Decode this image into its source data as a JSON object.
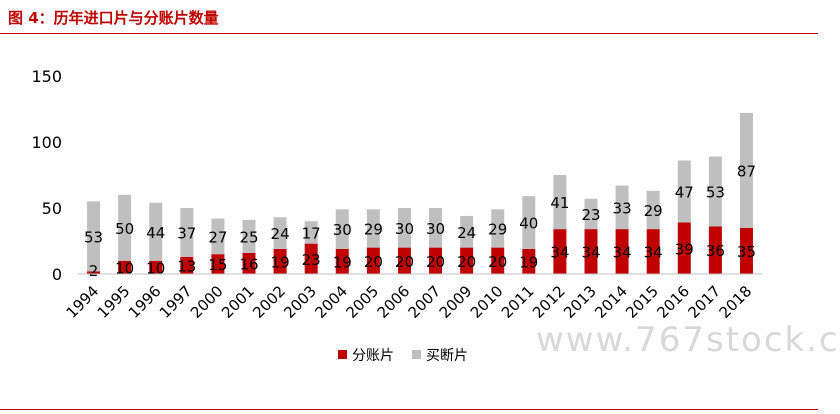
{
  "figure_title": "图 4：历年进口片与分账片数量",
  "watermark": "www.767stock.c",
  "colors": {
    "revenue_share": "#c00000",
    "buyout": "#bfbfbf",
    "title": "#c00000"
  },
  "chart_data": {
    "type": "bar",
    "stacked": true,
    "title": "",
    "xlabel": "",
    "ylabel": "",
    "ylim": [
      0,
      150
    ],
    "yticks": [
      0,
      50,
      100,
      150
    ],
    "grid": false,
    "legend_position": "bottom",
    "categories": [
      "1994",
      "1995",
      "1996",
      "1997",
      "2000",
      "2001",
      "2002",
      "2003",
      "2004",
      "2005",
      "2006",
      "2007",
      "2009",
      "2010",
      "2011",
      "2012",
      "2013",
      "2014",
      "2015",
      "2016",
      "2017",
      "2018"
    ],
    "series": [
      {
        "name": "分账片",
        "color": "#c00000",
        "values": [
          2,
          10,
          10,
          13,
          15,
          16,
          19,
          23,
          19,
          20,
          20,
          20,
          20,
          20,
          19,
          34,
          34,
          34,
          34,
          39,
          36,
          35
        ]
      },
      {
        "name": "买断片",
        "color": "#bfbfbf",
        "values": [
          53,
          50,
          44,
          37,
          27,
          25,
          24,
          17,
          30,
          29,
          30,
          30,
          24,
          29,
          40,
          41,
          23,
          33,
          29,
          47,
          53,
          87
        ]
      }
    ]
  }
}
